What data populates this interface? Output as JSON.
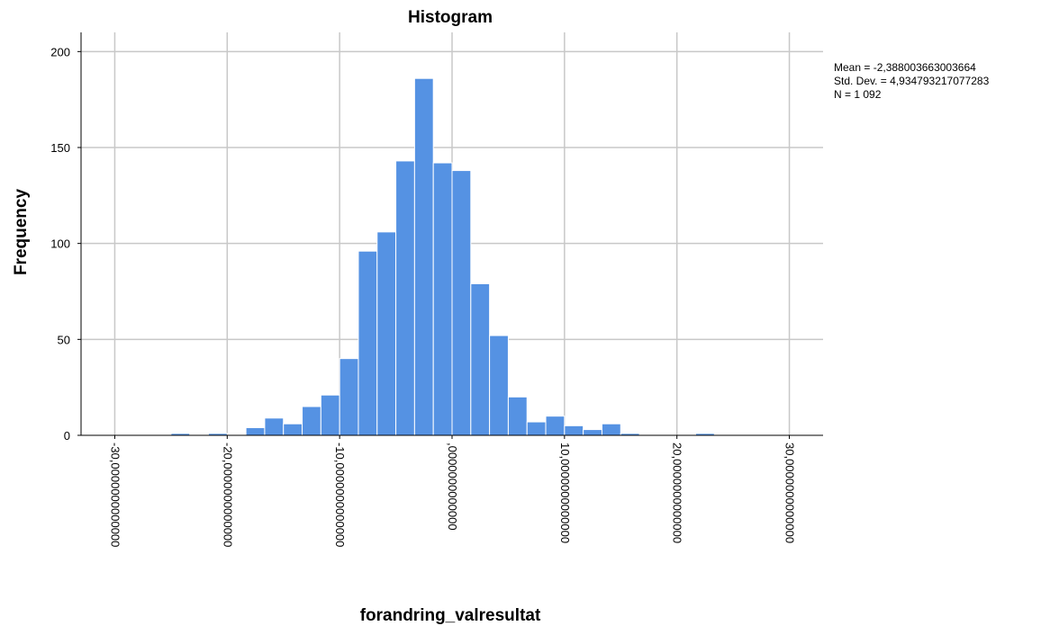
{
  "chart_data": {
    "type": "bar",
    "title": "Histogram",
    "xlabel": "forandring_valresultat",
    "ylabel": "Frequency",
    "xlim": [
      -33,
      33
    ],
    "ylim": [
      0,
      210
    ],
    "bin_width": 1.6667,
    "bins": [
      {
        "start": -25.0,
        "value": 1
      },
      {
        "start": -21.6667,
        "value": 1
      },
      {
        "start": -18.3333,
        "value": 4
      },
      {
        "start": -16.6667,
        "value": 9
      },
      {
        "start": -15.0,
        "value": 6
      },
      {
        "start": -13.3333,
        "value": 15
      },
      {
        "start": -11.6667,
        "value": 21
      },
      {
        "start": -10.0,
        "value": 40
      },
      {
        "start": -8.3333,
        "value": 96
      },
      {
        "start": -6.6667,
        "value": 106
      },
      {
        "start": -5.0,
        "value": 143
      },
      {
        "start": -3.3333,
        "value": 186
      },
      {
        "start": -1.6667,
        "value": 142
      },
      {
        "start": 0.0,
        "value": 138
      },
      {
        "start": 1.6667,
        "value": 79
      },
      {
        "start": 3.3333,
        "value": 52
      },
      {
        "start": 5.0,
        "value": 20
      },
      {
        "start": 6.6667,
        "value": 7
      },
      {
        "start": 8.3333,
        "value": 10
      },
      {
        "start": 10.0,
        "value": 5
      },
      {
        "start": 11.6667,
        "value": 3
      },
      {
        "start": 13.3333,
        "value": 6
      },
      {
        "start": 15.0,
        "value": 1
      },
      {
        "start": 21.6667,
        "value": 1
      }
    ],
    "x_ticks": [
      {
        "value": -30,
        "label": "-30,0000000000000"
      },
      {
        "value": -20,
        "label": "-20,0000000000000"
      },
      {
        "value": -10,
        "label": "-10,0000000000000"
      },
      {
        "value": 0,
        "label": ",0000000000000"
      },
      {
        "value": 10,
        "label": "10,0000000000000"
      },
      {
        "value": 20,
        "label": "20,0000000000000"
      },
      {
        "value": 30,
        "label": "30,0000000000000"
      }
    ],
    "y_ticks": [
      {
        "value": 0,
        "label": "0"
      },
      {
        "value": 50,
        "label": "50"
      },
      {
        "value": 100,
        "label": "100"
      },
      {
        "value": 150,
        "label": "150"
      },
      {
        "value": 200,
        "label": "200"
      }
    ],
    "grid": true,
    "bar_color": "#5592e3",
    "bar_edge_color": "#ffffff",
    "stats": {
      "mean": "Mean = -2,388003663003664",
      "std": "Std. Dev. = 4,934793217077283",
      "n": "N = 1 092"
    }
  }
}
